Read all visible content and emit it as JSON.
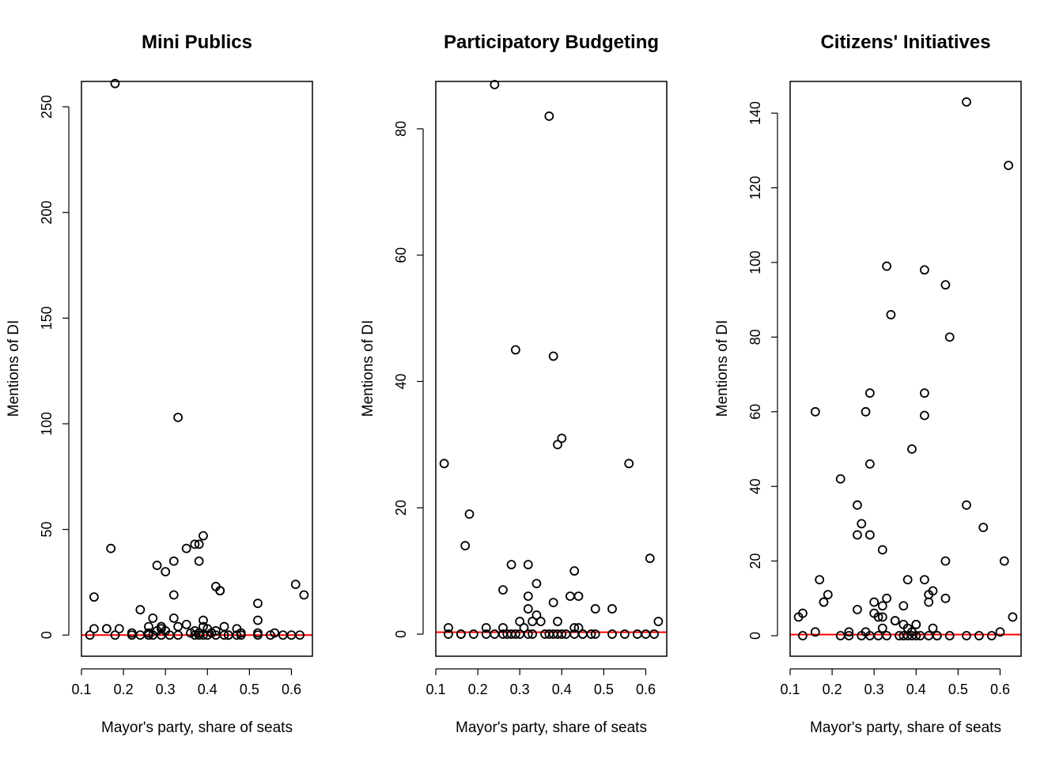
{
  "chart_data": [
    {
      "type": "scatter",
      "title": "Mini Publics",
      "xlabel": "Mayor's party, share of seats",
      "ylabel": "Mentions of DI",
      "xlim": [
        0.1,
        0.65
      ],
      "ylim": [
        -10,
        262
      ],
      "xticks": [
        "0.1",
        "0.2",
        "0.3",
        "0.4",
        "0.5",
        "0.6"
      ],
      "yticks": [
        "0",
        "50",
        "100",
        "150",
        "200",
        "250"
      ],
      "reference_line": {
        "y": 0,
        "color": "#ff0000"
      },
      "marker": "open-circle",
      "grid": false,
      "points": [
        [
          0.12,
          0
        ],
        [
          0.13,
          3
        ],
        [
          0.13,
          18
        ],
        [
          0.16,
          3
        ],
        [
          0.16,
          3
        ],
        [
          0.17,
          41
        ],
        [
          0.18,
          261
        ],
        [
          0.18,
          0
        ],
        [
          0.19,
          3
        ],
        [
          0.22,
          1
        ],
        [
          0.22,
          0
        ],
        [
          0.24,
          12
        ],
        [
          0.24,
          0
        ],
        [
          0.26,
          4
        ],
        [
          0.26,
          0
        ],
        [
          0.26,
          1
        ],
        [
          0.27,
          8
        ],
        [
          0.27,
          0
        ],
        [
          0.28,
          33
        ],
        [
          0.28,
          2
        ],
        [
          0.29,
          4
        ],
        [
          0.29,
          0
        ],
        [
          0.29,
          3
        ],
        [
          0.3,
          30
        ],
        [
          0.3,
          2
        ],
        [
          0.31,
          0
        ],
        [
          0.32,
          19
        ],
        [
          0.32,
          8
        ],
        [
          0.32,
          35
        ],
        [
          0.33,
          103
        ],
        [
          0.33,
          4
        ],
        [
          0.33,
          0
        ],
        [
          0.35,
          41
        ],
        [
          0.35,
          5
        ],
        [
          0.36,
          1
        ],
        [
          0.37,
          43
        ],
        [
          0.37,
          0
        ],
        [
          0.37,
          2
        ],
        [
          0.38,
          43
        ],
        [
          0.38,
          35
        ],
        [
          0.38,
          1
        ],
        [
          0.38,
          0
        ],
        [
          0.39,
          47
        ],
        [
          0.39,
          7
        ],
        [
          0.39,
          4
        ],
        [
          0.39,
          0
        ],
        [
          0.4,
          3
        ],
        [
          0.4,
          0
        ],
        [
          0.41,
          1
        ],
        [
          0.42,
          23
        ],
        [
          0.42,
          2
        ],
        [
          0.42,
          0
        ],
        [
          0.43,
          21
        ],
        [
          0.43,
          21
        ],
        [
          0.44,
          4
        ],
        [
          0.44,
          0
        ],
        [
          0.45,
          0
        ],
        [
          0.45,
          0
        ],
        [
          0.47,
          3
        ],
        [
          0.47,
          0
        ],
        [
          0.48,
          1
        ],
        [
          0.48,
          0
        ],
        [
          0.52,
          15
        ],
        [
          0.52,
          7
        ],
        [
          0.52,
          1
        ],
        [
          0.52,
          0
        ],
        [
          0.55,
          0
        ],
        [
          0.56,
          1
        ],
        [
          0.58,
          0
        ],
        [
          0.6,
          0
        ],
        [
          0.61,
          24
        ],
        [
          0.62,
          0
        ],
        [
          0.63,
          19
        ]
      ]
    },
    {
      "type": "scatter",
      "title": "Participatory Budgeting",
      "xlabel": "Mayor's party, share of seats",
      "ylabel": "Mentions of DI",
      "xlim": [
        0.1,
        0.65
      ],
      "ylim": [
        -3.5,
        87.5
      ],
      "xticks": [
        "0.1",
        "0.2",
        "0.3",
        "0.4",
        "0.5",
        "0.6"
      ],
      "yticks": [
        "0",
        "20",
        "40",
        "60",
        "80"
      ],
      "reference_line": {
        "y": 0.3,
        "color": "#ff0000"
      },
      "marker": "open-circle",
      "grid": false,
      "points": [
        [
          0.12,
          27
        ],
        [
          0.13,
          1
        ],
        [
          0.13,
          0
        ],
        [
          0.16,
          0
        ],
        [
          0.16,
          0
        ],
        [
          0.17,
          14
        ],
        [
          0.18,
          19
        ],
        [
          0.19,
          0
        ],
        [
          0.22,
          1
        ],
        [
          0.22,
          0
        ],
        [
          0.24,
          87
        ],
        [
          0.24,
          0
        ],
        [
          0.26,
          7
        ],
        [
          0.26,
          1
        ],
        [
          0.26,
          0
        ],
        [
          0.27,
          0
        ],
        [
          0.28,
          11
        ],
        [
          0.28,
          0
        ],
        [
          0.29,
          45
        ],
        [
          0.29,
          0
        ],
        [
          0.3,
          2
        ],
        [
          0.3,
          0
        ],
        [
          0.31,
          1
        ],
        [
          0.32,
          11
        ],
        [
          0.32,
          6
        ],
        [
          0.32,
          4
        ],
        [
          0.32,
          0
        ],
        [
          0.33,
          2
        ],
        [
          0.33,
          0
        ],
        [
          0.34,
          8
        ],
        [
          0.34,
          3
        ],
        [
          0.35,
          2
        ],
        [
          0.36,
          0
        ],
        [
          0.37,
          82
        ],
        [
          0.37,
          0
        ],
        [
          0.38,
          44
        ],
        [
          0.38,
          5
        ],
        [
          0.38,
          0
        ],
        [
          0.39,
          30
        ],
        [
          0.39,
          2
        ],
        [
          0.39,
          0
        ],
        [
          0.4,
          31
        ],
        [
          0.4,
          0
        ],
        [
          0.41,
          0
        ],
        [
          0.42,
          6
        ],
        [
          0.43,
          10
        ],
        [
          0.43,
          1
        ],
        [
          0.43,
          0
        ],
        [
          0.44,
          1
        ],
        [
          0.44,
          6
        ],
        [
          0.45,
          0
        ],
        [
          0.45,
          0
        ],
        [
          0.47,
          0
        ],
        [
          0.48,
          4
        ],
        [
          0.48,
          0
        ],
        [
          0.52,
          4
        ],
        [
          0.52,
          0
        ],
        [
          0.55,
          0
        ],
        [
          0.56,
          27
        ],
        [
          0.58,
          0
        ],
        [
          0.6,
          0
        ],
        [
          0.61,
          12
        ],
        [
          0.62,
          0
        ],
        [
          0.63,
          2
        ]
      ]
    },
    {
      "type": "scatter",
      "title": "Citizens' Initiatives",
      "xlabel": "Mayor's party, share of seats",
      "ylabel": "Mentions of DI",
      "xlim": [
        0.1,
        0.65
      ],
      "ylim": [
        -5.5,
        148.5
      ],
      "xticks": [
        "0.1",
        "0.2",
        "0.3",
        "0.4",
        "0.5",
        "0.6"
      ],
      "yticks": [
        "0",
        "20",
        "40",
        "60",
        "80",
        "100",
        "120",
        "140"
      ],
      "reference_line": {
        "y": 0.3,
        "color": "#ff0000"
      },
      "marker": "open-circle",
      "grid": false,
      "points": [
        [
          0.12,
          5
        ],
        [
          0.13,
          6
        ],
        [
          0.13,
          0
        ],
        [
          0.16,
          60
        ],
        [
          0.16,
          1
        ],
        [
          0.17,
          15
        ],
        [
          0.18,
          9
        ],
        [
          0.18,
          9
        ],
        [
          0.19,
          11
        ],
        [
          0.22,
          42
        ],
        [
          0.22,
          0
        ],
        [
          0.24,
          1
        ],
        [
          0.24,
          0
        ],
        [
          0.26,
          35
        ],
        [
          0.26,
          27
        ],
        [
          0.26,
          7
        ],
        [
          0.27,
          30
        ],
        [
          0.27,
          0
        ],
        [
          0.28,
          60
        ],
        [
          0.28,
          1
        ],
        [
          0.29,
          27
        ],
        [
          0.29,
          65
        ],
        [
          0.29,
          46
        ],
        [
          0.29,
          0
        ],
        [
          0.3,
          6
        ],
        [
          0.3,
          9
        ],
        [
          0.31,
          5
        ],
        [
          0.31,
          0
        ],
        [
          0.32,
          23
        ],
        [
          0.32,
          8
        ],
        [
          0.32,
          5
        ],
        [
          0.32,
          2
        ],
        [
          0.33,
          99
        ],
        [
          0.33,
          10
        ],
        [
          0.33,
          0
        ],
        [
          0.34,
          86
        ],
        [
          0.35,
          4
        ],
        [
          0.35,
          4
        ],
        [
          0.36,
          0
        ],
        [
          0.37,
          8
        ],
        [
          0.37,
          3
        ],
        [
          0.37,
          0
        ],
        [
          0.38,
          15
        ],
        [
          0.38,
          2
        ],
        [
          0.38,
          0
        ],
        [
          0.39,
          50
        ],
        [
          0.39,
          1
        ],
        [
          0.39,
          0
        ],
        [
          0.4,
          3
        ],
        [
          0.4,
          3
        ],
        [
          0.4,
          0
        ],
        [
          0.41,
          0
        ],
        [
          0.42,
          98
        ],
        [
          0.42,
          65
        ],
        [
          0.42,
          59
        ],
        [
          0.42,
          15
        ],
        [
          0.43,
          11
        ],
        [
          0.43,
          9
        ],
        [
          0.43,
          0
        ],
        [
          0.44,
          2
        ],
        [
          0.44,
          12
        ],
        [
          0.45,
          0
        ],
        [
          0.45,
          0
        ],
        [
          0.47,
          94
        ],
        [
          0.47,
          20
        ],
        [
          0.47,
          10
        ],
        [
          0.48,
          80
        ],
        [
          0.48,
          0
        ],
        [
          0.52,
          35
        ],
        [
          0.52,
          143
        ],
        [
          0.52,
          0
        ],
        [
          0.55,
          0
        ],
        [
          0.56,
          29
        ],
        [
          0.58,
          0
        ],
        [
          0.6,
          1
        ],
        [
          0.61,
          20
        ],
        [
          0.62,
          126
        ],
        [
          0.63,
          5
        ]
      ]
    }
  ]
}
